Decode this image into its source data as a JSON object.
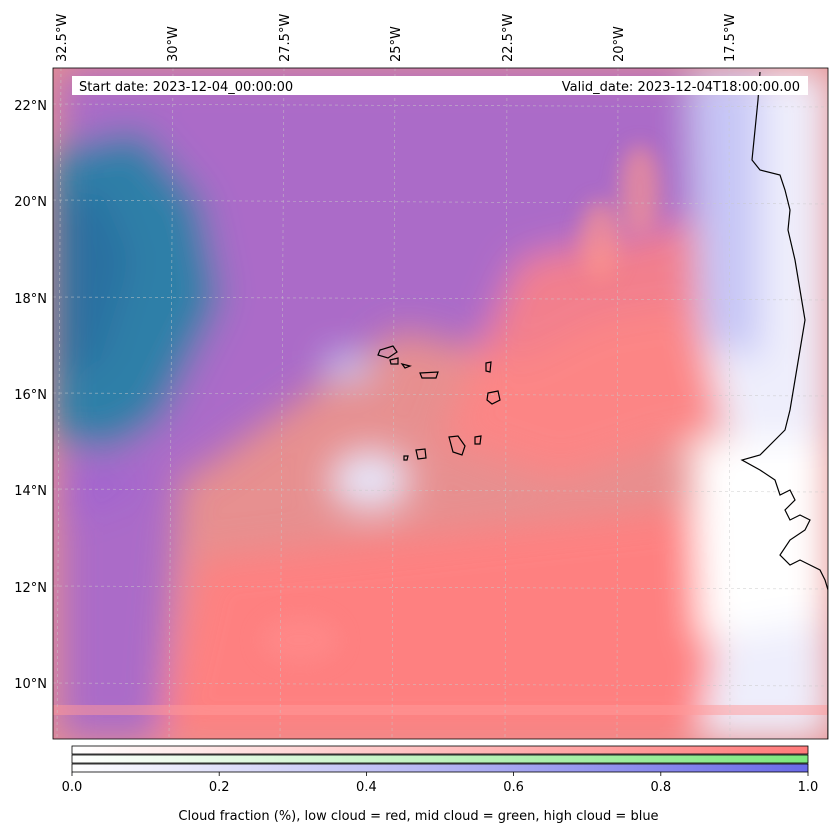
{
  "map": {
    "start_date": "Start date: 2023-12-04_00:00:00",
    "valid_date": "Valid_date: 2023-12-04T18:00:00.00",
    "longitude_labels": [
      "32.5°W",
      "30°W",
      "27.5°W",
      "25°W",
      "22.5°W",
      "20°W",
      "17.5°W"
    ],
    "latitude_labels": [
      "22°N",
      "20°N",
      "18°N",
      "16°N",
      "14°N",
      "12°N",
      "10°N"
    ],
    "layers": [
      {
        "name": "low cloud",
        "color": "#ff6e6e"
      },
      {
        "name": "mid cloud",
        "color": "#6ee66e"
      },
      {
        "name": "high cloud",
        "color": "#6e6eff"
      }
    ]
  },
  "colorbar": {
    "ticks": [
      "0.0",
      "0.2",
      "0.4",
      "0.6",
      "0.8",
      "1.0"
    ],
    "tick_values": [
      0,
      0.2,
      0.4,
      0.6,
      0.8,
      1.0
    ],
    "colors": [
      "#ff7a7a",
      "#7de87d",
      "#6a6ae8"
    ],
    "caption": "Cloud fraction (%), low cloud = red, mid cloud = green, high cloud = blue"
  }
}
